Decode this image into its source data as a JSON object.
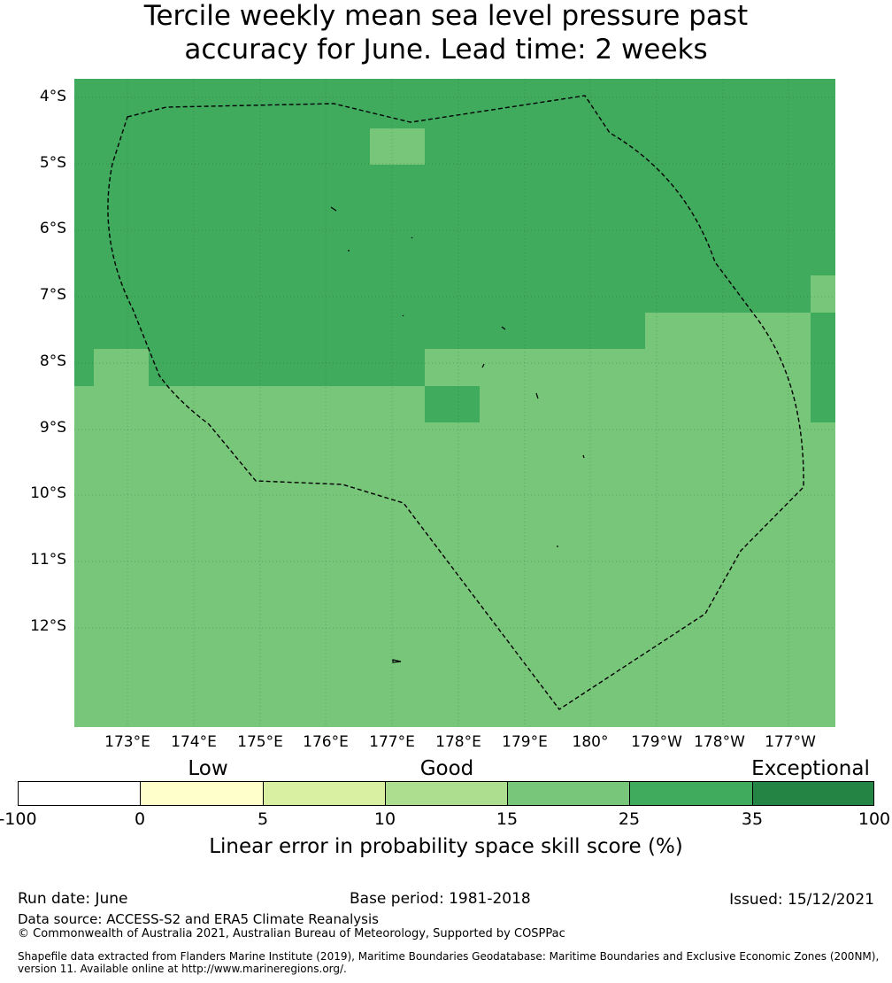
{
  "title": {
    "line1": "Tercile weekly mean sea level pressure past",
    "line2": "accuracy for June. Lead time: 2 weeks"
  },
  "map": {
    "lat_labels": [
      "4°S",
      "5°S",
      "6°S",
      "7°S",
      "8°S",
      "9°S",
      "10°S",
      "11°S",
      "12°S"
    ],
    "lon_labels": [
      "173°E",
      "174°E",
      "175°E",
      "176°E",
      "177°E",
      "178°E",
      "179°E",
      "180°",
      "179°W",
      "178°W",
      "177°W"
    ],
    "dominant_category": "15-25",
    "cell_categories": [
      {
        "category": "25-35",
        "color": "#41ab5d"
      },
      {
        "category": "15-25",
        "color": "#78c679"
      }
    ],
    "eez_boundary": "dashed",
    "gridlines": true
  },
  "colorbar": {
    "categories": [
      "Low",
      "Good",
      "Exceptional"
    ],
    "ticks": [
      "-100",
      "0",
      "5",
      "10",
      "15",
      "25",
      "35",
      "100"
    ],
    "colors": [
      "#ffffff",
      "#ffffcc",
      "#d9f0a3",
      "#addd8e",
      "#78c679",
      "#41ab5d",
      "#238443"
    ],
    "label": "Linear error in probability space skill score (%)"
  },
  "footer": {
    "run_date": "Run date: June",
    "base_period": "Base period: 1981-2018",
    "issued": "Issued: 15/12/2021",
    "data_source": "Data source: ACCESS-S2 and ERA5 Climate Reanalysis",
    "copyright": "© Commonwealth of Australia 2021, Australian Bureau of Meteorology, Supported by COSPPac",
    "shapefile_line1": "Shapefile data extracted from Flanders Marine Institute (2019), Maritime Boundaries Geodatabase: Maritime Boundaries and Exclusive Economic Zones (200NM),",
    "shapefile_line2": "version 11. Available online at http://www.marineregions.org/."
  }
}
